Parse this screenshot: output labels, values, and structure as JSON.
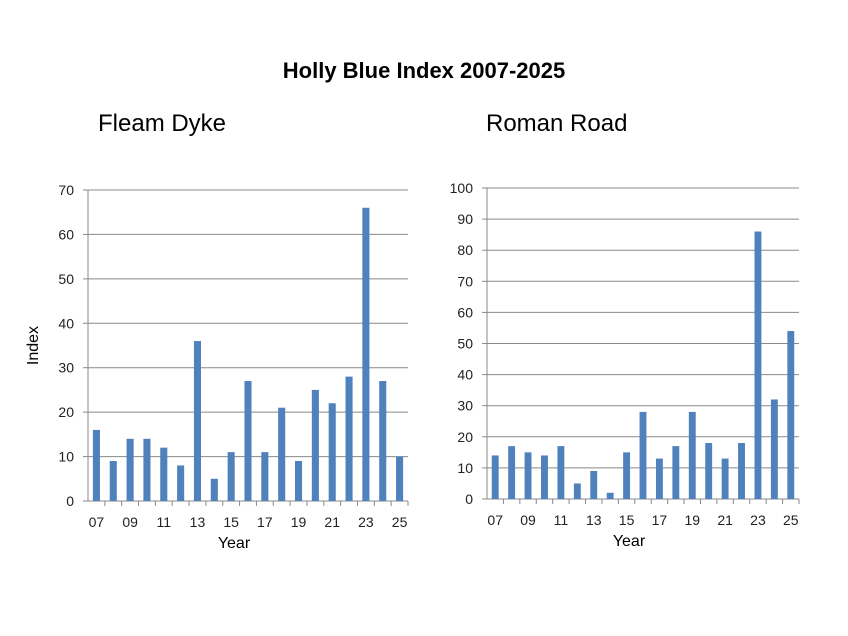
{
  "title": "Holly Blue Index 2007-2025",
  "colors": {
    "bar": "#4f81bd",
    "grid": "#898989"
  },
  "chart_data": [
    {
      "type": "bar",
      "title": "Fleam Dyke",
      "xlabel": "Year",
      "ylabel": "Index",
      "ylim": [
        0,
        70
      ],
      "ytick_step": 10,
      "grid": true,
      "categories": [
        "07",
        "08",
        "09",
        "10",
        "11",
        "12",
        "13",
        "14",
        "15",
        "16",
        "17",
        "18",
        "19",
        "20",
        "21",
        "22",
        "23",
        "24",
        "25"
      ],
      "xtick_labels": [
        "07",
        "09",
        "11",
        "13",
        "15",
        "17",
        "19",
        "21",
        "23",
        "25"
      ],
      "values": [
        16,
        9,
        14,
        14,
        12,
        8,
        36,
        5,
        11,
        27,
        11,
        21,
        9,
        25,
        22,
        28,
        66,
        27,
        10
      ]
    },
    {
      "type": "bar",
      "title": "Roman Road",
      "xlabel": "Year",
      "ylabel": "",
      "ylim": [
        0,
        100
      ],
      "ytick_step": 10,
      "grid": true,
      "categories": [
        "07",
        "08",
        "09",
        "10",
        "11",
        "12",
        "13",
        "14",
        "15",
        "16",
        "17",
        "18",
        "19",
        "20",
        "21",
        "22",
        "23",
        "24",
        "25"
      ],
      "xtick_labels": [
        "07",
        "09",
        "11",
        "13",
        "15",
        "17",
        "19",
        "21",
        "23",
        "25"
      ],
      "values": [
        14,
        17,
        15,
        14,
        17,
        5,
        9,
        2,
        15,
        28,
        13,
        17,
        28,
        18,
        13,
        18,
        86,
        32,
        54
      ]
    }
  ]
}
